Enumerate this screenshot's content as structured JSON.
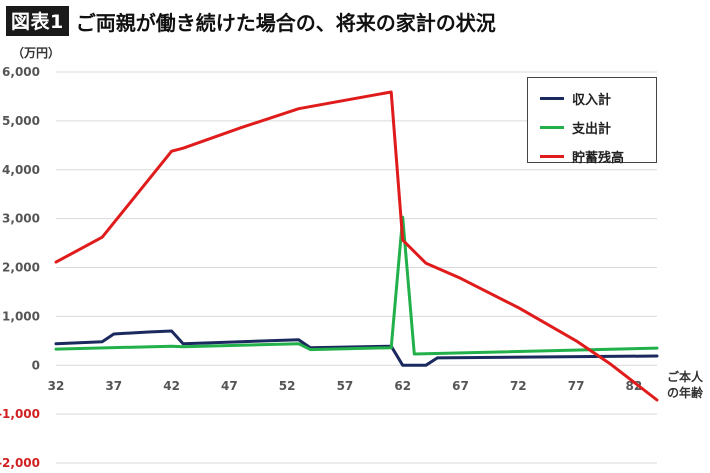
{
  "header": {
    "figure_label": "図表1",
    "title": "ご両親が働き続けた場合の、将来の家計の状況"
  },
  "unit_label": "（万円）",
  "x_axis_note": "ご本人\nの年齢",
  "colors": {
    "income": "#1b2a5e",
    "expense": "#22b04a",
    "savings": "#e01b1b",
    "grid": "#d9d9d9",
    "axis_text": "#555555",
    "negative_text": "#d02020"
  },
  "chart_data": {
    "type": "line",
    "title": "ご両親が働き続けた場合の、将来の家計の状況",
    "xlabel": "ご本人の年齢",
    "ylabel": "（万円）",
    "xlim": [
      32,
      84
    ],
    "ylim": [
      -2000,
      6000
    ],
    "grid": true,
    "legend_position": "top-right",
    "x_ticks": [
      32,
      37,
      42,
      47,
      52,
      57,
      62,
      67,
      72,
      77,
      82
    ],
    "y_ticks": [
      6000,
      5000,
      4000,
      3000,
      2000,
      1000,
      0,
      -1000,
      -2000
    ],
    "y_tick_labels": [
      "6,000",
      "5,000",
      "4,000",
      "3,000",
      "2,000",
      "1,000",
      "0",
      "-1,000",
      "-2,000"
    ],
    "series": [
      {
        "name": "収入計",
        "key": "income",
        "points": [
          [
            32,
            440
          ],
          [
            34,
            460
          ],
          [
            36,
            480
          ],
          [
            37,
            640
          ],
          [
            40,
            680
          ],
          [
            42,
            700
          ],
          [
            43,
            440
          ],
          [
            53,
            520
          ],
          [
            54,
            360
          ],
          [
            61,
            390
          ],
          [
            62,
            0
          ],
          [
            64,
            0
          ],
          [
            65,
            150
          ],
          [
            84,
            190
          ]
        ]
      },
      {
        "name": "支出計",
        "key": "expense",
        "points": [
          [
            32,
            330
          ],
          [
            42,
            390
          ],
          [
            43,
            380
          ],
          [
            53,
            440
          ],
          [
            54,
            320
          ],
          [
            61,
            360
          ],
          [
            62,
            3030
          ],
          [
            63,
            230
          ],
          [
            84,
            350
          ]
        ]
      },
      {
        "name": "貯蓄残高",
        "key": "savings",
        "points": [
          [
            32,
            2110
          ],
          [
            36,
            2620
          ],
          [
            42,
            4380
          ],
          [
            43,
            4440
          ],
          [
            48,
            4860
          ],
          [
            53,
            5250
          ],
          [
            57,
            5420
          ],
          [
            61,
            5590
          ],
          [
            62,
            2560
          ],
          [
            64,
            2090
          ],
          [
            67,
            1780
          ],
          [
            72,
            1180
          ],
          [
            77,
            500
          ],
          [
            80,
            20
          ],
          [
            84,
            -710
          ]
        ]
      }
    ]
  }
}
